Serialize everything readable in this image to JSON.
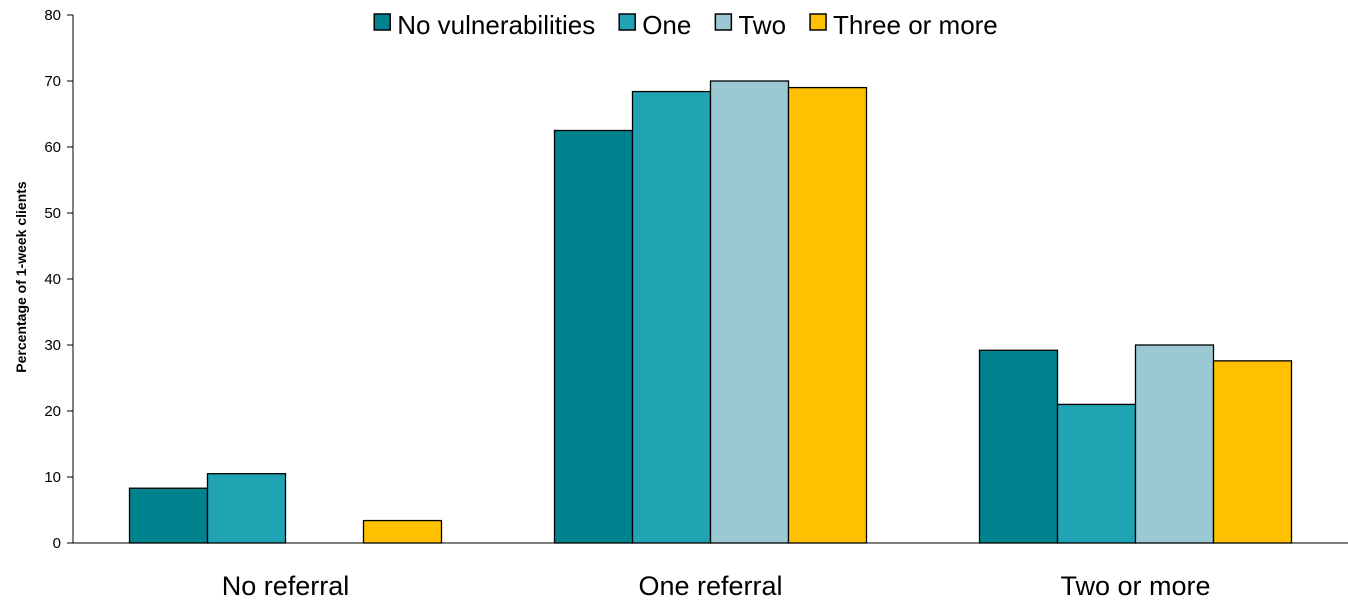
{
  "chart_data": {
    "type": "bar",
    "categories": [
      "No referral",
      "One referral",
      "Two or more"
    ],
    "series": [
      {
        "name": "No vulnerabilities",
        "color": "#00838f",
        "values": [
          8.3,
          62.5,
          29.2
        ]
      },
      {
        "name": "One",
        "color": "#20a3b2",
        "values": [
          10.5,
          68.4,
          21.0
        ]
      },
      {
        "name": "Two",
        "color": "#9ac9d4",
        "values": [
          0,
          70.0,
          30.0
        ]
      },
      {
        "name": "Three or more",
        "color": "#ffc000",
        "values": [
          3.4,
          69.0,
          27.6
        ]
      }
    ],
    "ylabel": "Percentage of 1-week clients",
    "ylim": [
      0,
      80
    ],
    "yticks": [
      0,
      10,
      20,
      30,
      40,
      50,
      60,
      70,
      80
    ],
    "grid": false,
    "legend_position": "top"
  }
}
